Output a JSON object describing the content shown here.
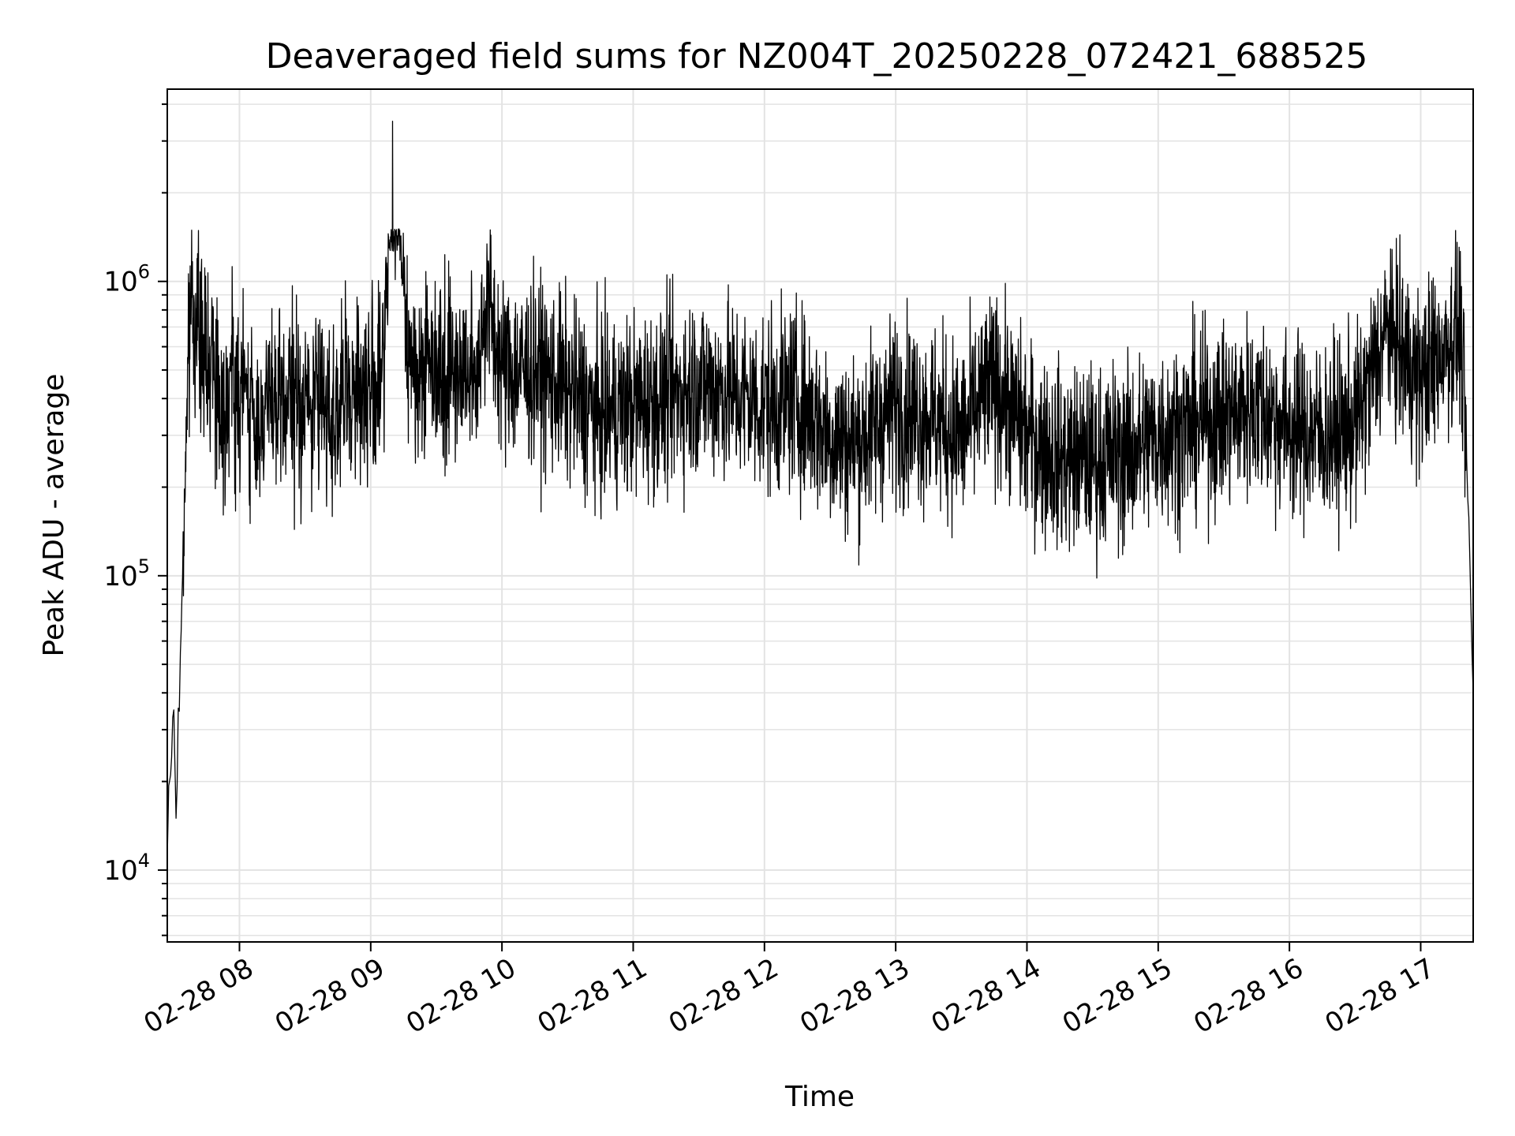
{
  "chart_data": {
    "type": "line",
    "title": "Deaveraged field sums for NZ004T_20250228_072421_688525",
    "xlabel": "Time",
    "ylabel": "Peak ADU - average",
    "yscale": "log",
    "xlim": [
      "02-28 07:27",
      "02-28 17:24"
    ],
    "ylim": [
      5700,
      4500000
    ],
    "grid": true,
    "line_color": "#000000",
    "grid_color": "#e3e3e3",
    "x_ticks": [
      "02-28 08",
      "02-28 09",
      "02-28 10",
      "02-28 11",
      "02-28 12",
      "02-28 13",
      "02-28 14",
      "02-28 15",
      "02-28 16",
      "02-28 17"
    ],
    "y_ticks": [
      {
        "base": "10",
        "exp": "4",
        "value": 10000
      },
      {
        "base": "10",
        "exp": "5",
        "value": 100000
      },
      {
        "base": "10",
        "exp": "6",
        "value": 1000000
      }
    ],
    "series": [
      {
        "x": [
          "02-28 07:27",
          "02-28 07:28",
          "02-28 07:30",
          "02-28 07:31",
          "02-28 07:33",
          "02-28 07:34",
          "02-28 07:36",
          "02-28 07:38",
          "02-28 07:41",
          "02-28 07:44",
          "02-28 07:47",
          "02-28 07:50",
          "02-28 07:53",
          "02-28 07:56",
          "02-28 07:59",
          "02-28 08:03",
          "02-28 08:07",
          "02-28 08:12",
          "02-28 08:17",
          "02-28 08:22",
          "02-28 08:30",
          "02-28 08:37",
          "02-28 08:45",
          "02-28 08:52",
          "02-28 09:00",
          "02-28 09:06",
          "02-28 09:10",
          "02-28 09:18",
          "02-28 09:27",
          "02-28 09:37",
          "02-28 09:48",
          "02-28 09:53",
          "02-28 10:00",
          "02-28 10:15",
          "02-28 10:25",
          "02-28 10:35",
          "02-28 10:45",
          "02-28 11:00",
          "02-28 11:15",
          "02-28 11:30",
          "02-28 11:45",
          "02-28 12:00",
          "02-28 12:15",
          "02-28 12:30",
          "02-28 12:40",
          "02-28 12:50",
          "02-28 13:00",
          "02-28 13:15",
          "02-28 13:30",
          "02-28 13:45",
          "02-28 13:50",
          "02-28 14:00",
          "02-28 14:15",
          "02-28 14:30",
          "02-28 14:45",
          "02-28 15:00",
          "02-28 15:15",
          "02-28 15:30",
          "02-28 15:45",
          "02-28 16:00",
          "02-28 16:15",
          "02-28 16:30",
          "02-28 16:45",
          "02-28 17:00",
          "02-28 17:10",
          "02-28 17:18",
          "02-28 17:21",
          "02-28 17:24"
        ],
        "y": [
          11000,
          20000,
          35000,
          15000,
          55000,
          100000,
          400000,
          900000,
          700000,
          500000,
          600000,
          450000,
          350000,
          500000,
          400000,
          450000,
          300000,
          400000,
          350000,
          400000,
          380000,
          400000,
          350000,
          450000,
          420000,
          500000,
          3500000,
          480000,
          550000,
          500000,
          480000,
          900000,
          500000,
          500000,
          450000,
          400000,
          350000,
          380000,
          400000,
          450000,
          420000,
          380000,
          400000,
          300000,
          280000,
          320000,
          380000,
          350000,
          300000,
          450000,
          400000,
          300000,
          250000,
          250000,
          260000,
          300000,
          320000,
          350000,
          380000,
          320000,
          300000,
          320000,
          700000,
          450000,
          600000,
          700000,
          250000,
          40000
        ]
      }
    ]
  }
}
